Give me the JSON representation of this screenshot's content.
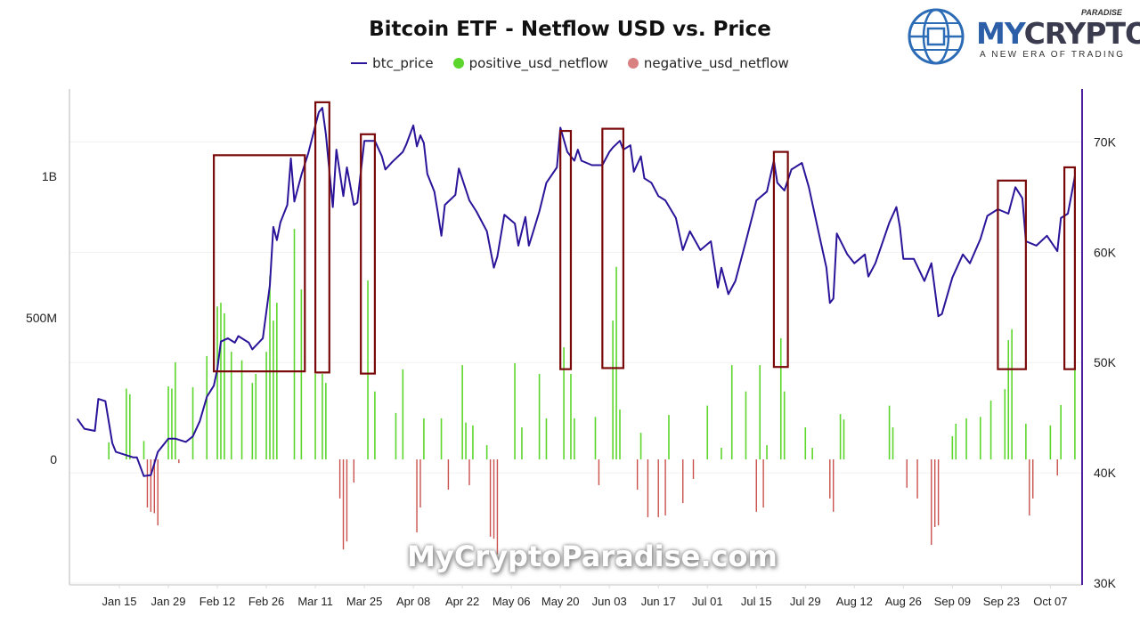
{
  "logo": {
    "text": "MYCRYPTO",
    "part1": "MY",
    "part2": "CRYPTO",
    "super": "PARADISE",
    "tagline": "A NEW ERA OF TRADING"
  },
  "watermark": "MyCryptoParadise.com",
  "colors": {
    "price": "#2b1499",
    "positive": "#5cd62c",
    "negative": "#c9504c",
    "highlight": "#7a0a0a",
    "right_axis": "#4b1fa0"
  },
  "chart_data": {
    "type": "bar+line",
    "title": "Bitcoin ETF - Netflow USD vs. Price",
    "legend": [
      "btc_price",
      "positive_usd_netflow",
      "negative_usd_netflow"
    ],
    "legend_position": "top",
    "grid": true,
    "x_ticks": [
      "Jan 15",
      "Jan 29",
      "Feb 12",
      "Feb 26",
      "Mar 11",
      "Mar 25",
      "Apr 08",
      "Apr 22",
      "May 06",
      "May 20",
      "Jun 03",
      "Jun 17",
      "Jul 01",
      "Jul 15",
      "Jul 29",
      "Aug 12",
      "Aug 26",
      "Sep 09",
      "Sep 23",
      "Oct 07"
    ],
    "x_tick_dates": [
      "2024-01-15",
      "2024-01-29",
      "2024-02-12",
      "2024-02-26",
      "2024-03-11",
      "2024-03-25",
      "2024-04-08",
      "2024-04-22",
      "2024-05-06",
      "2024-05-20",
      "2024-06-03",
      "2024-06-17",
      "2024-07-01",
      "2024-07-15",
      "2024-07-29",
      "2024-08-12",
      "2024-08-26",
      "2024-09-09",
      "2024-09-23",
      "2024-10-07"
    ],
    "left_axis": {
      "ticks": [
        "0",
        "500M",
        "1B"
      ],
      "tick_values": [
        0,
        500000000,
        1000000000
      ],
      "ylim": [
        -437000000,
        1308000000
      ]
    },
    "right_axis": {
      "ticks": [
        "30K",
        "40K",
        "50K",
        "60K",
        "70K"
      ],
      "tick_values": [
        30000,
        40000,
        50000,
        60000,
        70000
      ],
      "ylim": [
        30000,
        74800
      ]
    },
    "btc_price": [
      [
        "2024-01-03",
        44900
      ],
      [
        "2024-01-05",
        44000
      ],
      [
        "2024-01-08",
        43800
      ],
      [
        "2024-01-09",
        46700
      ],
      [
        "2024-01-11",
        46500
      ],
      [
        "2024-01-13",
        42700
      ],
      [
        "2024-01-14",
        41900
      ],
      [
        "2024-01-17",
        41600
      ],
      [
        "2024-01-19",
        41400
      ],
      [
        "2024-01-20",
        41400
      ],
      [
        "2024-01-22",
        39700
      ],
      [
        "2024-01-24",
        39800
      ],
      [
        "2024-01-26",
        41900
      ],
      [
        "2024-01-29",
        43100
      ],
      [
        "2024-01-31",
        43100
      ],
      [
        "2024-02-03",
        42800
      ],
      [
        "2024-02-05",
        43300
      ],
      [
        "2024-02-07",
        44700
      ],
      [
        "2024-02-09",
        46900
      ],
      [
        "2024-02-11",
        47900
      ],
      [
        "2024-02-12",
        49400
      ],
      [
        "2024-02-13",
        51900
      ],
      [
        "2024-02-15",
        52200
      ],
      [
        "2024-02-17",
        51800
      ],
      [
        "2024-02-18",
        52400
      ],
      [
        "2024-02-21",
        51800
      ],
      [
        "2024-02-22",
        51200
      ],
      [
        "2024-02-25",
        52200
      ],
      [
        "2024-02-27",
        57000
      ],
      [
        "2024-02-28",
        62300
      ],
      [
        "2024-02-29",
        61100
      ],
      [
        "2024-03-01",
        62700
      ],
      [
        "2024-03-03",
        64300
      ],
      [
        "2024-03-04",
        68500
      ],
      [
        "2024-03-05",
        64600
      ],
      [
        "2024-03-07",
        67000
      ],
      [
        "2024-03-09",
        69000
      ],
      [
        "2024-03-11",
        71500
      ],
      [
        "2024-03-12",
        72700
      ],
      [
        "2024-03-13",
        73100
      ],
      [
        "2024-03-14",
        70700
      ],
      [
        "2024-03-16",
        64100
      ],
      [
        "2024-03-17",
        69300
      ],
      [
        "2024-03-19",
        65100
      ],
      [
        "2024-03-20",
        67700
      ],
      [
        "2024-03-22",
        64300
      ],
      [
        "2024-03-23",
        64500
      ],
      [
        "2024-03-25",
        70100
      ],
      [
        "2024-03-28",
        70100
      ],
      [
        "2024-03-30",
        68700
      ],
      [
        "2024-03-31",
        67500
      ],
      [
        "2024-04-02",
        68200
      ],
      [
        "2024-04-05",
        69100
      ],
      [
        "2024-04-06",
        69800
      ],
      [
        "2024-04-08",
        71500
      ],
      [
        "2024-04-09",
        69600
      ],
      [
        "2024-04-10",
        70600
      ],
      [
        "2024-04-11",
        69900
      ],
      [
        "2024-04-12",
        67100
      ],
      [
        "2024-04-14",
        65500
      ],
      [
        "2024-04-15",
        63600
      ],
      [
        "2024-04-16",
        61500
      ],
      [
        "2024-04-17",
        64300
      ],
      [
        "2024-04-20",
        65200
      ],
      [
        "2024-04-21",
        67600
      ],
      [
        "2024-04-24",
        64700
      ],
      [
        "2024-04-26",
        63700
      ],
      [
        "2024-04-29",
        61900
      ],
      [
        "2024-05-01",
        58600
      ],
      [
        "2024-05-02",
        59600
      ],
      [
        "2024-05-04",
        63400
      ],
      [
        "2024-05-07",
        62600
      ],
      [
        "2024-05-08",
        60600
      ],
      [
        "2024-05-10",
        63200
      ],
      [
        "2024-05-11",
        60600
      ],
      [
        "2024-05-12",
        61600
      ],
      [
        "2024-05-14",
        63700
      ],
      [
        "2024-05-16",
        66300
      ],
      [
        "2024-05-19",
        67700
      ],
      [
        "2024-05-20",
        71300
      ],
      [
        "2024-05-22",
        69100
      ],
      [
        "2024-05-24",
        68300
      ],
      [
        "2024-05-25",
        69300
      ],
      [
        "2024-05-26",
        68300
      ],
      [
        "2024-05-29",
        67900
      ],
      [
        "2024-06-01",
        67900
      ],
      [
        "2024-06-03",
        69100
      ],
      [
        "2024-06-04",
        69500
      ],
      [
        "2024-06-06",
        70100
      ],
      [
        "2024-06-07",
        69300
      ],
      [
        "2024-06-09",
        69700
      ],
      [
        "2024-06-10",
        67300
      ],
      [
        "2024-06-12",
        68700
      ],
      [
        "2024-06-13",
        66700
      ],
      [
        "2024-06-15",
        66300
      ],
      [
        "2024-06-17",
        65100
      ],
      [
        "2024-06-19",
        64700
      ],
      [
        "2024-06-22",
        63100
      ],
      [
        "2024-06-24",
        60200
      ],
      [
        "2024-06-26",
        61900
      ],
      [
        "2024-06-29",
        60200
      ],
      [
        "2024-07-02",
        61000
      ],
      [
        "2024-07-04",
        56800
      ],
      [
        "2024-07-05",
        58600
      ],
      [
        "2024-07-07",
        56200
      ],
      [
        "2024-07-09",
        57400
      ],
      [
        "2024-07-12",
        61000
      ],
      [
        "2024-07-15",
        64700
      ],
      [
        "2024-07-18",
        65500
      ],
      [
        "2024-07-20",
        68300
      ],
      [
        "2024-07-21",
        66300
      ],
      [
        "2024-07-23",
        65600
      ],
      [
        "2024-07-25",
        67500
      ],
      [
        "2024-07-28",
        68100
      ],
      [
        "2024-07-30",
        65900
      ],
      [
        "2024-08-02",
        61500
      ],
      [
        "2024-08-04",
        58600
      ],
      [
        "2024-08-05",
        55400
      ],
      [
        "2024-08-06",
        55800
      ],
      [
        "2024-08-07",
        61700
      ],
      [
        "2024-08-10",
        59800
      ],
      [
        "2024-08-12",
        59000
      ],
      [
        "2024-08-15",
        59800
      ],
      [
        "2024-08-16",
        57800
      ],
      [
        "2024-08-18",
        59000
      ],
      [
        "2024-08-22",
        62700
      ],
      [
        "2024-08-24",
        64100
      ],
      [
        "2024-08-25",
        62300
      ],
      [
        "2024-08-26",
        59400
      ],
      [
        "2024-08-29",
        59400
      ],
      [
        "2024-09-01",
        57400
      ],
      [
        "2024-09-03",
        59000
      ],
      [
        "2024-09-05",
        54200
      ],
      [
        "2024-09-06",
        54400
      ],
      [
        "2024-09-09",
        57700
      ],
      [
        "2024-09-12",
        59800
      ],
      [
        "2024-09-14",
        59000
      ],
      [
        "2024-09-17",
        61200
      ],
      [
        "2024-09-19",
        63300
      ],
      [
        "2024-09-22",
        63900
      ],
      [
        "2024-09-25",
        63500
      ],
      [
        "2024-09-27",
        65900
      ],
      [
        "2024-09-29",
        64900
      ],
      [
        "2024-09-30",
        61000
      ],
      [
        "2024-10-03",
        60600
      ],
      [
        "2024-10-06",
        61500
      ],
      [
        "2024-10-09",
        60100
      ],
      [
        "2024-10-10",
        63100
      ],
      [
        "2024-10-12",
        63500
      ],
      [
        "2024-10-13",
        65200
      ],
      [
        "2024-10-14",
        66900
      ]
    ],
    "positive_usd_netflow": [
      [
        "2024-01-12",
        60000000
      ],
      [
        "2024-01-17",
        250000000
      ],
      [
        "2024-01-18",
        230000000
      ],
      [
        "2024-01-22",
        65000000
      ],
      [
        "2024-01-29",
        258000000
      ],
      [
        "2024-01-30",
        250000000
      ],
      [
        "2024-01-31",
        343000000
      ],
      [
        "2024-02-05",
        255000000
      ],
      [
        "2024-02-09",
        365000000
      ],
      [
        "2024-02-12",
        540000000
      ],
      [
        "2024-02-13",
        553000000
      ],
      [
        "2024-02-14",
        516000000
      ],
      [
        "2024-02-16",
        380000000
      ],
      [
        "2024-02-19",
        350000000
      ],
      [
        "2024-02-22",
        270000000
      ],
      [
        "2024-02-23",
        302000000
      ],
      [
        "2024-02-26",
        380000000
      ],
      [
        "2024-02-27",
        648000000
      ],
      [
        "2024-02-28",
        490000000
      ],
      [
        "2024-02-29",
        553000000
      ],
      [
        "2024-03-05",
        814000000
      ],
      [
        "2024-03-07",
        600000000
      ],
      [
        "2024-03-11",
        302000000
      ],
      [
        "2024-03-13",
        302000000
      ],
      [
        "2024-03-14",
        270000000
      ],
      [
        "2024-03-26",
        632000000
      ],
      [
        "2024-03-28",
        240000000
      ],
      [
        "2024-04-03",
        164000000
      ],
      [
        "2024-04-05",
        318000000
      ],
      [
        "2024-04-11",
        145000000
      ],
      [
        "2024-04-16",
        145000000
      ],
      [
        "2024-04-22",
        333000000
      ],
      [
        "2024-04-23",
        130000000
      ],
      [
        "2024-04-25",
        120000000
      ],
      [
        "2024-04-29",
        50000000
      ],
      [
        "2024-05-07",
        340000000
      ],
      [
        "2024-05-09",
        113000000
      ],
      [
        "2024-05-14",
        302000000
      ],
      [
        "2024-05-16",
        145000000
      ],
      [
        "2024-05-21",
        396000000
      ],
      [
        "2024-05-23",
        302000000
      ],
      [
        "2024-05-24",
        145000000
      ],
      [
        "2024-05-30",
        150000000
      ],
      [
        "2024-06-04",
        490000000
      ],
      [
        "2024-06-05",
        680000000
      ],
      [
        "2024-06-06",
        176000000
      ],
      [
        "2024-06-12",
        94000000
      ],
      [
        "2024-06-20",
        157000000
      ],
      [
        "2024-07-01",
        190000000
      ],
      [
        "2024-07-05",
        41000000
      ],
      [
        "2024-07-08",
        333000000
      ],
      [
        "2024-07-12",
        240000000
      ],
      [
        "2024-07-16",
        333000000
      ],
      [
        "2024-07-18",
        50000000
      ],
      [
        "2024-07-22",
        428000000
      ],
      [
        "2024-07-23",
        240000000
      ],
      [
        "2024-07-29",
        113000000
      ],
      [
        "2024-07-31",
        41000000
      ],
      [
        "2024-08-08",
        160000000
      ],
      [
        "2024-08-09",
        141000000
      ],
      [
        "2024-08-22",
        190000000
      ],
      [
        "2024-08-23",
        113000000
      ],
      [
        "2024-09-09",
        82000000
      ],
      [
        "2024-09-10",
        126000000
      ],
      [
        "2024-09-13",
        145000000
      ],
      [
        "2024-09-17",
        150000000
      ],
      [
        "2024-09-20",
        208000000
      ],
      [
        "2024-09-24",
        248000000
      ],
      [
        "2024-09-25",
        421000000
      ],
      [
        "2024-09-26",
        460000000
      ],
      [
        "2024-09-30",
        126000000
      ],
      [
        "2024-10-07",
        120000000
      ],
      [
        "2024-10-10",
        192000000
      ],
      [
        "2024-10-14",
        428000000
      ]
    ],
    "negative_usd_netflow": [
      [
        "2024-01-23",
        -170000000
      ],
      [
        "2024-01-24",
        -185000000
      ],
      [
        "2024-01-25",
        -190000000
      ],
      [
        "2024-01-26",
        -233000000
      ],
      [
        "2024-02-01",
        -13000000
      ],
      [
        "2024-03-18",
        -138000000
      ],
      [
        "2024-03-19",
        -318000000
      ],
      [
        "2024-03-20",
        -290000000
      ],
      [
        "2024-03-22",
        -82000000
      ],
      [
        "2024-04-09",
        -258000000
      ],
      [
        "2024-04-10",
        -170000000
      ],
      [
        "2024-04-18",
        -107000000
      ],
      [
        "2024-04-24",
        -91000000
      ],
      [
        "2024-04-30",
        -273000000
      ],
      [
        "2024-05-01",
        -280000000
      ],
      [
        "2024-05-02",
        -336000000
      ],
      [
        "2024-05-31",
        -91000000
      ],
      [
        "2024-06-11",
        -107000000
      ],
      [
        "2024-06-14",
        -204000000
      ],
      [
        "2024-06-17",
        -204000000
      ],
      [
        "2024-06-19",
        -198000000
      ],
      [
        "2024-06-24",
        -154000000
      ],
      [
        "2024-06-27",
        -69000000
      ],
      [
        "2024-07-15",
        -185000000
      ],
      [
        "2024-07-17",
        -170000000
      ],
      [
        "2024-08-05",
        -138000000
      ],
      [
        "2024-08-06",
        -185000000
      ],
      [
        "2024-08-27",
        -100000000
      ],
      [
        "2024-08-30",
        -138000000
      ],
      [
        "2024-09-03",
        -302000000
      ],
      [
        "2024-09-04",
        -239000000
      ],
      [
        "2024-09-05",
        -233000000
      ],
      [
        "2024-10-01",
        -198000000
      ],
      [
        "2024-10-02",
        -138000000
      ],
      [
        "2024-10-09",
        -57000000
      ]
    ],
    "highlight_boxes": [
      {
        "from": "2024-02-11",
        "to": "2024-03-08",
        "price_high": 68800,
        "price_low": 49200
      },
      {
        "from": "2024-03-11",
        "to": "2024-03-15",
        "price_high": 73600,
        "price_low": 49100
      },
      {
        "from": "2024-03-24",
        "to": "2024-03-28",
        "price_high": 70700,
        "price_low": 49000
      },
      {
        "from": "2024-05-20",
        "to": "2024-05-23",
        "price_high": 71000,
        "price_low": 49400
      },
      {
        "from": "2024-06-01",
        "to": "2024-06-07",
        "price_high": 71200,
        "price_low": 49500
      },
      {
        "from": "2024-07-20",
        "to": "2024-07-24",
        "price_high": 69100,
        "price_low": 49600
      },
      {
        "from": "2024-09-22",
        "to": "2024-09-30",
        "price_high": 66500,
        "price_low": 49400
      },
      {
        "from": "2024-10-11",
        "to": "2024-10-14",
        "price_high": 67700,
        "price_low": 49400
      }
    ]
  }
}
